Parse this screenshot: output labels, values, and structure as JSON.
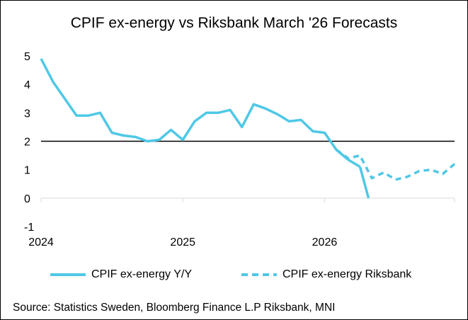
{
  "title": "CPIF ex-energy vs Riksbank March '26 Forecasts",
  "source": "Source: Statistics Sweden, Bloomberg Finance L.P Riksbank, MNI",
  "chart_data": {
    "type": "line",
    "title": "CPIF ex-energy vs Riksbank March '26 Forecasts",
    "xlabel": "",
    "ylabel": "",
    "ylim": [
      -1,
      5
    ],
    "yticks": [
      "-1",
      "0",
      "1",
      "2",
      "3",
      "4",
      "5"
    ],
    "xticks": [
      "2024",
      "2025",
      "2026"
    ],
    "xlim": [
      "2024-01",
      "2026-12"
    ],
    "grid": false,
    "reference_line": 2,
    "legend_position": "bottom",
    "series": [
      {
        "name": "CPIF ex-energy Y/Y",
        "style": "solid",
        "color": "#4FC8E6",
        "x": [
          "2024-01",
          "2024-02",
          "2024-03",
          "2024-04",
          "2024-05",
          "2024-06",
          "2024-07",
          "2024-08",
          "2024-09",
          "2024-10",
          "2024-11",
          "2024-12",
          "2025-01",
          "2025-02",
          "2025-03",
          "2025-04",
          "2025-05",
          "2025-06",
          "2025-07",
          "2025-08",
          "2025-09",
          "2025-10",
          "2025-11",
          "2025-12",
          "2026-01",
          "2026-02",
          "2026-03",
          "2026-04"
        ],
        "values": [
          4.9,
          4.1,
          3.5,
          2.9,
          2.9,
          3.0,
          2.3,
          2.2,
          2.15,
          2.0,
          2.05,
          2.4,
          2.05,
          2.7,
          3.0,
          3.0,
          3.1,
          2.5,
          3.3,
          3.15,
          2.95,
          2.7,
          2.75,
          2.35,
          2.3,
          1.7,
          1.35,
          1.1
        ]
      },
      {
        "name": "CPIF ex-energy Riksbank",
        "style": "dashed",
        "color": "#4FC8E6",
        "x": [
          "2026-02",
          "2026-03",
          "2026-04",
          "2026-05",
          "2026-06",
          "2026-07",
          "2026-08",
          "2026-09",
          "2026-10",
          "2026-11",
          "2026-12"
        ],
        "values": [
          1.7,
          1.4,
          1.5,
          0.7,
          0.9,
          0.65,
          0.75,
          0.95,
          1.0,
          0.85,
          1.2
        ]
      }
    ]
  }
}
